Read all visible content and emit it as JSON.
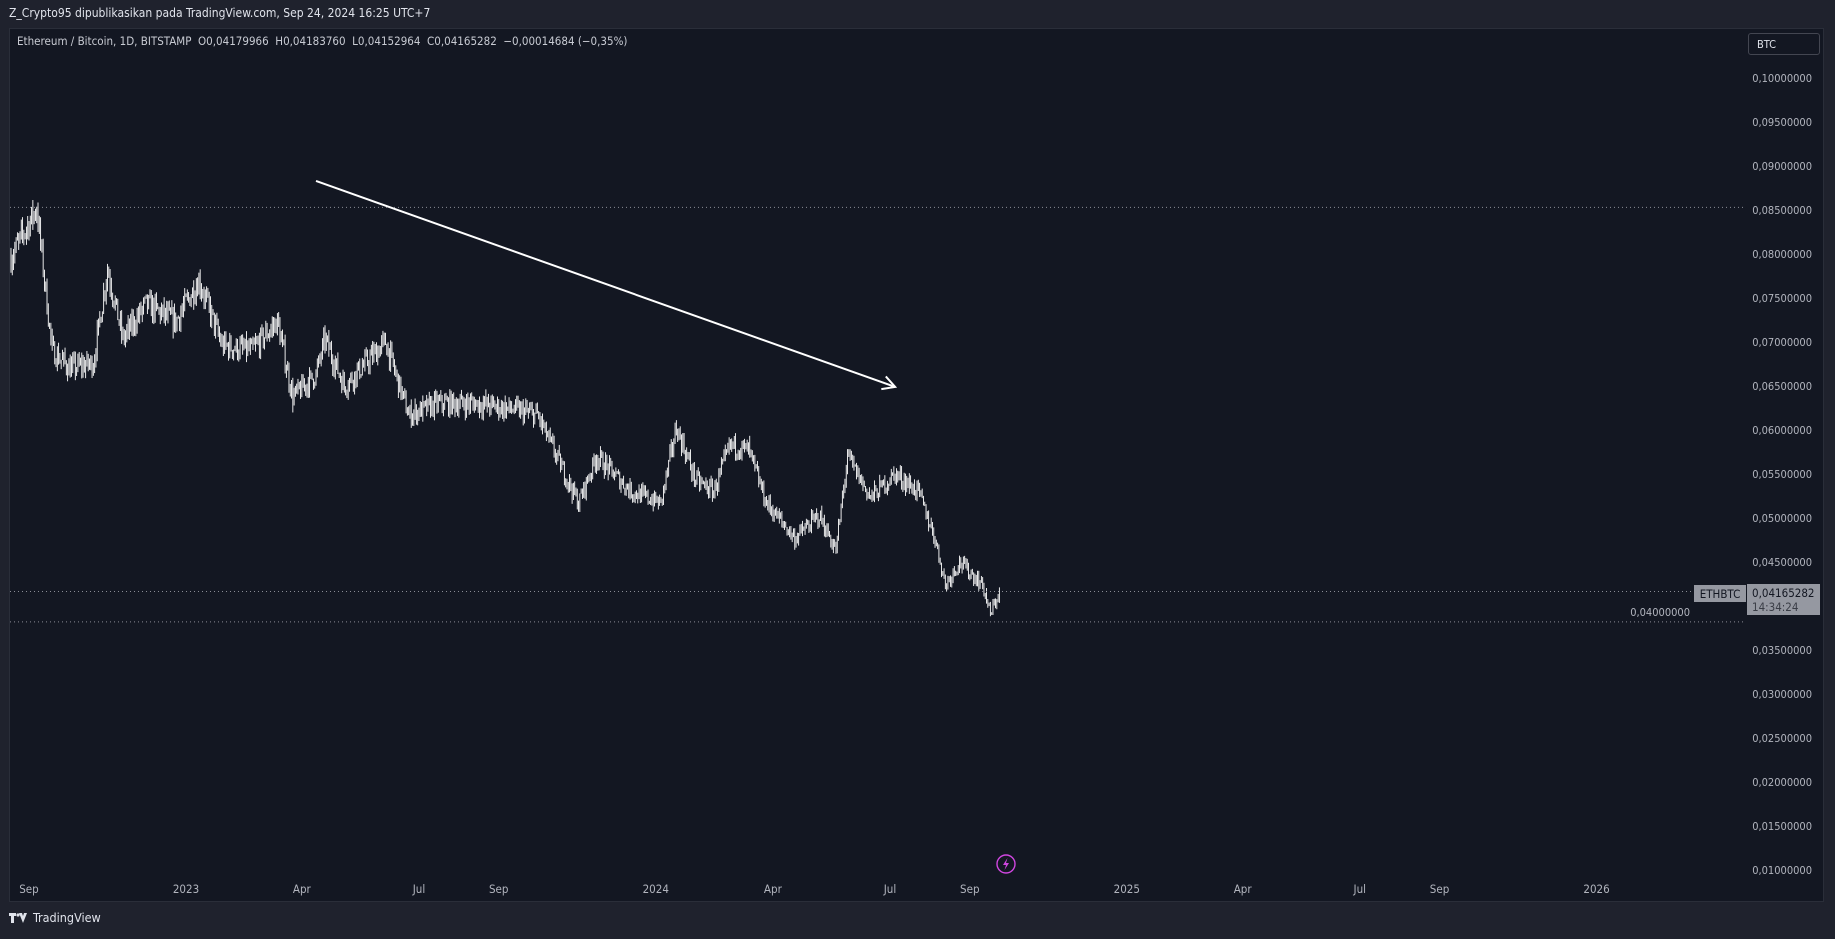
{
  "header": {
    "publish_line": "Z_Crypto95 dipublikasikan pada TradingView.com, Sep 24, 2024 16:25 UTC+7"
  },
  "legend": {
    "symbol": "Ethereum / Bitcoin, 1D, BITSTAMP",
    "open": "O0,04179966",
    "high": "H0,04183760",
    "low": "L0,04152964",
    "close": "C0,04165282",
    "change": "−0,00014684 (−0,35%)"
  },
  "currency_button": "BTC",
  "price_tag": {
    "symbol": "ETHBTC",
    "price": "0,04165282",
    "countdown": "14:34:24"
  },
  "footer": {
    "brand": "TradingView",
    "logo": "tv-logo-icon"
  },
  "colors": {
    "background": "#131722",
    "candles": "#ffffff",
    "arrow": "#ffffff",
    "lightning": "#d046e0"
  },
  "chart_data": {
    "type": "candlestick",
    "interval": "1D",
    "ylim": [
      0.01,
      0.1
    ],
    "y_ticks": [
      "0,10000000",
      "0,09500000",
      "0,09000000",
      "0,08500000",
      "0,08000000",
      "0,07500000",
      "0,07000000",
      "0,06500000",
      "0,06000000",
      "0,05500000",
      "0,05000000",
      "0,04500000",
      "0,04000000",
      "0,03500000",
      "0,03000000",
      "0,02500000",
      "0,02000000",
      "0,01500000",
      "0,01000000"
    ],
    "x_ticks": [
      {
        "label": "Sep",
        "date": "2022-09-01"
      },
      {
        "label": "2023",
        "date": "2023-01-01"
      },
      {
        "label": "Apr",
        "date": "2023-04-01"
      },
      {
        "label": "Jul",
        "date": "2023-07-01"
      },
      {
        "label": "Sep",
        "date": "2023-09-01"
      },
      {
        "label": "2024",
        "date": "2024-01-01"
      },
      {
        "label": "Apr",
        "date": "2024-04-01"
      },
      {
        "label": "Jul",
        "date": "2024-07-01"
      },
      {
        "label": "Sep",
        "date": "2024-09-01"
      },
      {
        "label": "2025",
        "date": "2025-01-01"
      },
      {
        "label": "Apr",
        "date": "2025-04-01"
      },
      {
        "label": "Jul",
        "date": "2025-07-01"
      },
      {
        "label": "Sep",
        "date": "2025-09-01"
      },
      {
        "label": "2026",
        "date": "2026-01-01"
      }
    ],
    "approx_closes": [
      [
        "2022-08-18",
        0.0796
      ],
      [
        "2022-09-07",
        0.0852
      ],
      [
        "2022-09-19",
        0.069
      ],
      [
        "2022-10-03",
        0.067
      ],
      [
        "2022-10-21",
        0.0676
      ],
      [
        "2022-11-01",
        0.0783
      ],
      [
        "2022-11-13",
        0.0703
      ],
      [
        "2022-12-01",
        0.0743
      ],
      [
        "2022-12-24",
        0.0723
      ],
      [
        "2023-01-11",
        0.077
      ],
      [
        "2023-01-29",
        0.0696
      ],
      [
        "2023-02-21",
        0.069
      ],
      [
        "2023-03-13",
        0.0723
      ],
      [
        "2023-03-25",
        0.0637
      ],
      [
        "2023-04-12",
        0.0663
      ],
      [
        "2023-04-19",
        0.0703
      ],
      [
        "2023-05-04",
        0.065
      ],
      [
        "2023-06-05",
        0.07
      ],
      [
        "2023-06-23",
        0.0617
      ],
      [
        "2023-07-16",
        0.063
      ],
      [
        "2023-08-17",
        0.063
      ],
      [
        "2023-09-13",
        0.0623
      ],
      [
        "2023-10-01",
        0.0617
      ],
      [
        "2023-10-20",
        0.0557
      ],
      [
        "2023-11-02",
        0.0517
      ],
      [
        "2023-11-16",
        0.057
      ],
      [
        "2023-12-13",
        0.053
      ],
      [
        "2024-01-05",
        0.0517
      ],
      [
        "2024-01-17",
        0.0603
      ],
      [
        "2024-02-01",
        0.0543
      ],
      [
        "2024-02-15",
        0.053
      ],
      [
        "2024-02-28",
        0.0583
      ],
      [
        "2024-03-13",
        0.0577
      ],
      [
        "2024-03-27",
        0.0517
      ],
      [
        "2024-04-18",
        0.0477
      ],
      [
        "2024-05-07",
        0.0503
      ],
      [
        "2024-05-20",
        0.0463
      ],
      [
        "2024-05-29",
        0.057
      ],
      [
        "2024-06-16",
        0.0523
      ],
      [
        "2024-07-05",
        0.055
      ],
      [
        "2024-07-23",
        0.053
      ],
      [
        "2024-08-05",
        0.0477
      ],
      [
        "2024-08-13",
        0.0424
      ],
      [
        "2024-08-24",
        0.045
      ],
      [
        "2024-09-11",
        0.0424
      ],
      [
        "2024-09-17",
        0.039
      ],
      [
        "2024-09-24",
        0.04165282
      ]
    ],
    "horizontal_lines": [
      0.0853,
      0.04165282,
      0.0382
    ],
    "trend_arrow": {
      "from": [
        "2023-04-12",
        0.0883
      ],
      "to": [
        "2024-07-05",
        0.0649
      ]
    }
  }
}
